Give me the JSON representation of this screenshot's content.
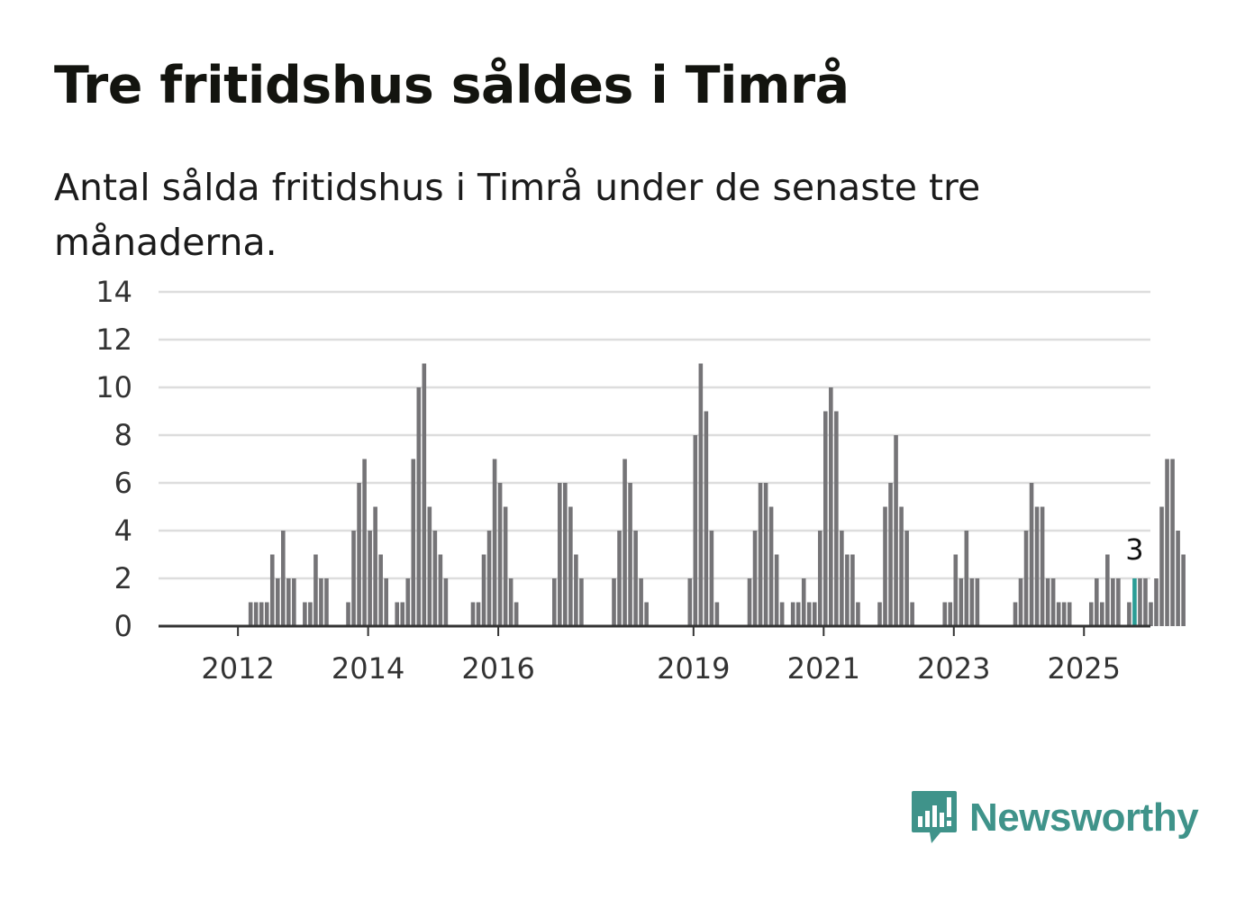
{
  "title": "Tre fritidshus såldes i Timrå",
  "subtitle": "Antal sålda fritidshus i Timrå under de senaste tre månaderna.",
  "brand": {
    "name": "Newsworthy",
    "icon": "newsworthy-logo-icon"
  },
  "colors": {
    "bar": "#757477",
    "highlight": "#2a9d96",
    "grid": "#dddddd",
    "axis": "#333333",
    "brand": "#3f938a"
  },
  "chart_data": {
    "type": "bar",
    "title": "Tre fritidshus såldes i Timrå",
    "xlabel": "",
    "ylabel": "",
    "ylim": [
      0,
      14
    ],
    "yticks": [
      0,
      2,
      4,
      6,
      8,
      10,
      12,
      14
    ],
    "xticks": [
      "2012",
      "2014",
      "2016",
      "2019",
      "2021",
      "2023",
      "2025"
    ],
    "x_start": "2011-06",
    "unit": "month",
    "highlight": {
      "index": 172,
      "label": "3"
    },
    "values": [
      0,
      0,
      0,
      0,
      0,
      0,
      0,
      0,
      0,
      1,
      1,
      1,
      1,
      3,
      2,
      4,
      2,
      2,
      0,
      1,
      1,
      3,
      2,
      2,
      0,
      0,
      0,
      1,
      4,
      6,
      7,
      4,
      5,
      3,
      2,
      0,
      1,
      1,
      2,
      7,
      10,
      11,
      5,
      4,
      3,
      2,
      0,
      0,
      0,
      0,
      1,
      1,
      3,
      4,
      7,
      6,
      5,
      2,
      1,
      0,
      0,
      0,
      0,
      0,
      0,
      2,
      6,
      6,
      5,
      3,
      2,
      0,
      0,
      0,
      0,
      0,
      2,
      4,
      7,
      6,
      4,
      2,
      1,
      0,
      0,
      0,
      0,
      0,
      0,
      0,
      2,
      8,
      11,
      9,
      4,
      1,
      0,
      0,
      0,
      0,
      0,
      2,
      4,
      6,
      6,
      5,
      3,
      1,
      0,
      1,
      1,
      2,
      1,
      1,
      4,
      9,
      10,
      9,
      4,
      3,
      3,
      1,
      0,
      0,
      0,
      1,
      5,
      6,
      8,
      5,
      4,
      1,
      0,
      0,
      0,
      0,
      0,
      1,
      1,
      3,
      2,
      4,
      2,
      2,
      0,
      0,
      0,
      0,
      0,
      0,
      1,
      2,
      4,
      6,
      5,
      5,
      2,
      2,
      1,
      1,
      1,
      0,
      0,
      0,
      1,
      2,
      1,
      3,
      2,
      2,
      0,
      1,
      2,
      2,
      2,
      1,
      2,
      5,
      7,
      7,
      4,
      3
    ]
  }
}
